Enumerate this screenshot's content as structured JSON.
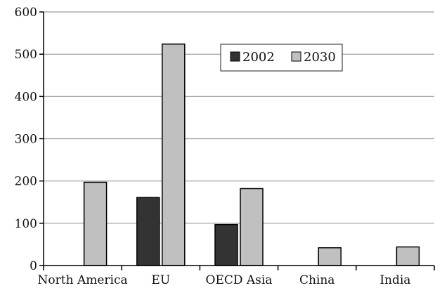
{
  "chart_data": {
    "type": "bar",
    "categories": [
      "North America",
      "EU",
      "OECD Asia",
      "China",
      "India"
    ],
    "series": [
      {
        "name": "2002",
        "values": [
          0,
          161,
          97,
          0,
          0
        ],
        "color": "#333333"
      },
      {
        "name": "2030",
        "values": [
          197,
          524,
          182,
          42,
          44
        ],
        "color": "#c0c0c0"
      }
    ],
    "yticks": [
      0,
      100,
      200,
      300,
      400,
      500,
      600
    ],
    "ylim": [
      0,
      600
    ],
    "grid": true,
    "legend_position": "top-right",
    "title": "",
    "xlabel": "",
    "ylabel": ""
  }
}
